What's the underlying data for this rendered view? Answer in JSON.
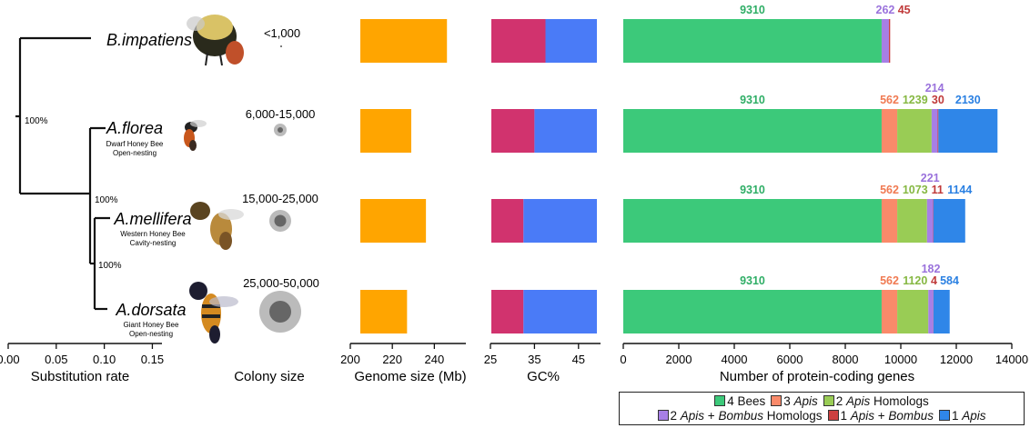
{
  "species": [
    {
      "name": "B.impatiens",
      "common": "",
      "nesting": "",
      "colony_label": "<1,000",
      "colony_size": "small"
    },
    {
      "name": "A.florea",
      "common": "Dwarf Honey Bee",
      "nesting": "Open-nesting",
      "colony_label": "6,000-15,000",
      "colony_size": "medium-small"
    },
    {
      "name": "A.mellifera",
      "common": "Western Honey Bee",
      "nesting": "Cavity-nesting",
      "colony_label": "15,000-25,000",
      "colony_size": "medium"
    },
    {
      "name": "A.dorsata",
      "common": "Giant Honey Bee",
      "nesting": "Open-nesting",
      "colony_label": "25,000-50,000",
      "colony_size": "large"
    }
  ],
  "tree": {
    "bootstrap_labels": [
      "100%",
      "100%",
      "100%"
    ],
    "axis_label": "Substitution rate",
    "ticks": [
      0.0,
      0.05,
      0.1,
      0.15
    ],
    "tick_labels": [
      "0.00",
      "0.05",
      "0.10",
      "0.15"
    ],
    "xlim": [
      0,
      0.16
    ]
  },
  "colony_axis_label": "Colony size",
  "chart_data": [
    {
      "type": "bar",
      "orientation": "horizontal",
      "categories": [
        "B.impatiens",
        "A.florea",
        "A.mellifera",
        "A.dorsata"
      ],
      "values": [
        246,
        229,
        236,
        227
      ],
      "xlabel": "Genome size (Mb)",
      "xlim": [
        200,
        255
      ],
      "ticks": [
        200,
        220,
        240
      ],
      "tick_labels": [
        "200",
        "220",
        "240"
      ],
      "color": "#FFA500"
    },
    {
      "type": "bar",
      "orientation": "horizontal",
      "stacked": true,
      "categories": [
        "B.impatiens",
        "A.florea",
        "A.mellifera",
        "A.dorsata"
      ],
      "values": [
        37.5,
        35,
        32.5,
        32.5
      ],
      "xlabel": "GC%",
      "xlim": [
        25,
        50
      ],
      "ticks": [
        25,
        35,
        45
      ],
      "tick_labels": [
        "25",
        "35",
        "45"
      ],
      "colors": [
        "#D1336E",
        "#4A7BF7"
      ]
    },
    {
      "type": "bar",
      "orientation": "horizontal",
      "stacked": true,
      "categories": [
        "B.impatiens",
        "A.florea",
        "A.mellifera",
        "A.dorsata"
      ],
      "xlabel": "Number of protein-coding genes",
      "xlim": [
        0,
        14000
      ],
      "ticks": [
        0,
        2000,
        4000,
        6000,
        8000,
        10000,
        12000,
        14000
      ],
      "tick_labels": [
        "0",
        "2000",
        "4000",
        "6000",
        "8000",
        "10000",
        "12000",
        "14000"
      ],
      "series": [
        {
          "name": "4 Bees",
          "color": "#3CC97A",
          "values": [
            9310,
            9310,
            9310,
            9310
          ]
        },
        {
          "name": "3 Apis",
          "color": "#FA8A6A",
          "values": [
            0,
            562,
            562,
            562
          ]
        },
        {
          "name": "2 Apis Homologs",
          "color": "#99CC55",
          "values": [
            0,
            1239,
            1073,
            1120
          ]
        },
        {
          "name": "2 Apis + Bombus Homologs",
          "color": "#A77FE6",
          "values": [
            262,
            214,
            221,
            182
          ]
        },
        {
          "name": "1 Apis + Bombus",
          "color": "#CC4040",
          "values": [
            45,
            30,
            11,
            4
          ]
        },
        {
          "name": "1 Apis",
          "color": "#2F86E8",
          "values": [
            0,
            2130,
            1144,
            584
          ]
        }
      ]
    }
  ],
  "legend": {
    "row1": [
      {
        "label_parts": [
          "4 Bees"
        ],
        "color": "#3CC97A"
      },
      {
        "label_parts": [
          "3 ",
          "Apis"
        ],
        "color": "#FA8A6A"
      },
      {
        "label_parts": [
          "2 ",
          "Apis",
          " Homologs"
        ],
        "color": "#99CC55"
      }
    ],
    "row2": [
      {
        "label_parts": [
          "2 ",
          "Apis",
          " + ",
          "Bombus",
          " Homologs"
        ],
        "color": "#A77FE6"
      },
      {
        "label_parts": [
          "1 ",
          "Apis",
          " + ",
          "Bombus"
        ],
        "color": "#CC4040"
      },
      {
        "label_parts": [
          "1 ",
          "Apis"
        ],
        "color": "#2F86E8"
      }
    ]
  }
}
